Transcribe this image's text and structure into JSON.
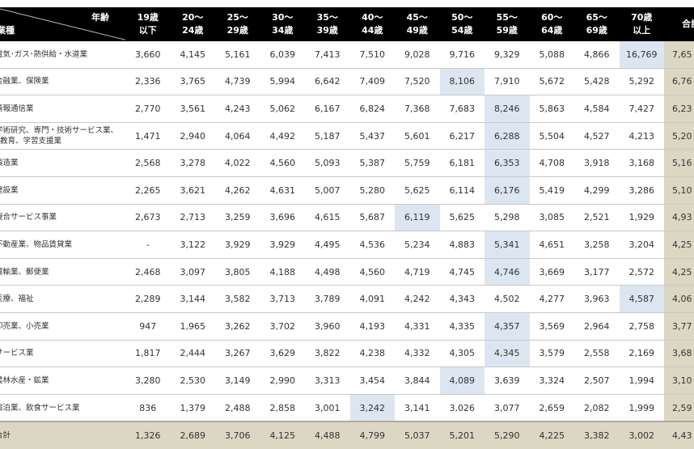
{
  "header": {
    "age_label": "年齢",
    "industry_label": "業種",
    "columns": [
      "19歳\n以下",
      "20～\n24歳",
      "25～\n29歳",
      "30～\n34歳",
      "35～\n39歳",
      "40～\n44歳",
      "45～\n49歳",
      "50～\n54歳",
      "55～\n59歳",
      "60～\n64歳",
      "65～\n69歳",
      "70歳\n以上",
      "合計"
    ]
  },
  "colors": {
    "header_bg": "#000000",
    "highlight": "#dce6f1",
    "total_bg": "#dcd7c3"
  },
  "rows": [
    {
      "label": "電気･ガス･熱供給・水道業",
      "values": [
        "3,660",
        "4,145",
        "5,161",
        "6,039",
        "7,413",
        "7,510",
        "9,028",
        "9,716",
        "9,329",
        "5,088",
        "4,866",
        "16,769"
      ],
      "total": "7,65",
      "highlight": 11
    },
    {
      "label": "金融業、保険業",
      "values": [
        "2,336",
        "3,765",
        "4,739",
        "5,994",
        "6,642",
        "7,409",
        "7,520",
        "8,106",
        "7,910",
        "5,672",
        "5,428",
        "5,292"
      ],
      "total": "6,76",
      "highlight": 7
    },
    {
      "label": "情報通信業",
      "values": [
        "2,770",
        "3,561",
        "4,243",
        "5,062",
        "6,167",
        "6,824",
        "7,368",
        "7,683",
        "8,246",
        "5,863",
        "4,584",
        "7,427"
      ],
      "total": "6,23",
      "highlight": 8
    },
    {
      "label": "学術研究、専門・技術サービス業、教育、学習支援業",
      "values": [
        "1,471",
        "2,940",
        "4,064",
        "4,492",
        "5,187",
        "5,437",
        "5,601",
        "6,217",
        "6,288",
        "5,504",
        "4,527",
        "4,213"
      ],
      "total": "5,20",
      "highlight": 8
    },
    {
      "label": "製造業",
      "values": [
        "2,568",
        "3,278",
        "4,022",
        "4,560",
        "5,093",
        "5,387",
        "5,759",
        "6,181",
        "6,353",
        "4,708",
        "3,918",
        "3,168"
      ],
      "total": "5,16",
      "highlight": 8
    },
    {
      "label": "建設業",
      "values": [
        "2,265",
        "3,621",
        "4,262",
        "4,631",
        "5,007",
        "5,280",
        "5,625",
        "6,114",
        "6,176",
        "5,419",
        "4,299",
        "3,286"
      ],
      "total": "5,10",
      "highlight": 8
    },
    {
      "label": "複合サービス事業",
      "values": [
        "2,673",
        "2,713",
        "3,259",
        "3,696",
        "4,615",
        "5,687",
        "6,119",
        "5,625",
        "5,298",
        "3,085",
        "2,521",
        "1,929"
      ],
      "total": "4,93",
      "highlight": 6
    },
    {
      "label": "不動産業、物品賃貸業",
      "values": [
        "-",
        "3,122",
        "3,929",
        "3,929",
        "4,495",
        "4,536",
        "5,234",
        "4,883",
        "5,341",
        "4,651",
        "3,258",
        "3,204"
      ],
      "total": "4,25",
      "highlight": 8
    },
    {
      "label": "運輸業、郵便業",
      "values": [
        "2,468",
        "3,097",
        "3,805",
        "4,188",
        "4,498",
        "4,560",
        "4,719",
        "4,745",
        "4,746",
        "3,669",
        "3,177",
        "2,572"
      ],
      "total": "4,25",
      "highlight": 8
    },
    {
      "label": "医療、福祉",
      "values": [
        "2,289",
        "3,144",
        "3,582",
        "3,713",
        "3,789",
        "4,091",
        "4,242",
        "4,343",
        "4,502",
        "4,277",
        "3,963",
        "4,587"
      ],
      "total": "4,06",
      "highlight": 11
    },
    {
      "label": "卸売業、小売業",
      "values": [
        "947",
        "1,965",
        "3,262",
        "3,702",
        "3,960",
        "4,193",
        "4,331",
        "4,335",
        "4,357",
        "3,569",
        "2,964",
        "2,758"
      ],
      "total": "3,77",
      "highlight": 8
    },
    {
      "label": "サービス業",
      "values": [
        "1,817",
        "2,444",
        "3,267",
        "3,629",
        "3,822",
        "4,238",
        "4,332",
        "4,305",
        "4,345",
        "3,579",
        "2,558",
        "2,169"
      ],
      "total": "3,68",
      "highlight": 8
    },
    {
      "label": "農林水産・鉱業",
      "values": [
        "3,280",
        "2,530",
        "3,149",
        "2,990",
        "3,313",
        "3,454",
        "3,844",
        "4,089",
        "3,639",
        "3,324",
        "2,507",
        "1,994"
      ],
      "total": "3,10",
      "highlight": 7
    },
    {
      "label": "宿泊業、飲食サービス業",
      "values": [
        "836",
        "1,379",
        "2,488",
        "2,858",
        "3,001",
        "3,242",
        "3,141",
        "3,026",
        "3,077",
        "2,659",
        "2,082",
        "1,999"
      ],
      "total": "2,59",
      "highlight": 5
    }
  ],
  "total_row": {
    "label": "合計",
    "values": [
      "1,326",
      "2,689",
      "3,706",
      "4,125",
      "4,488",
      "4,799",
      "5,037",
      "5,201",
      "5,290",
      "4,225",
      "3,382",
      "3,002"
    ],
    "total": "4,43"
  }
}
